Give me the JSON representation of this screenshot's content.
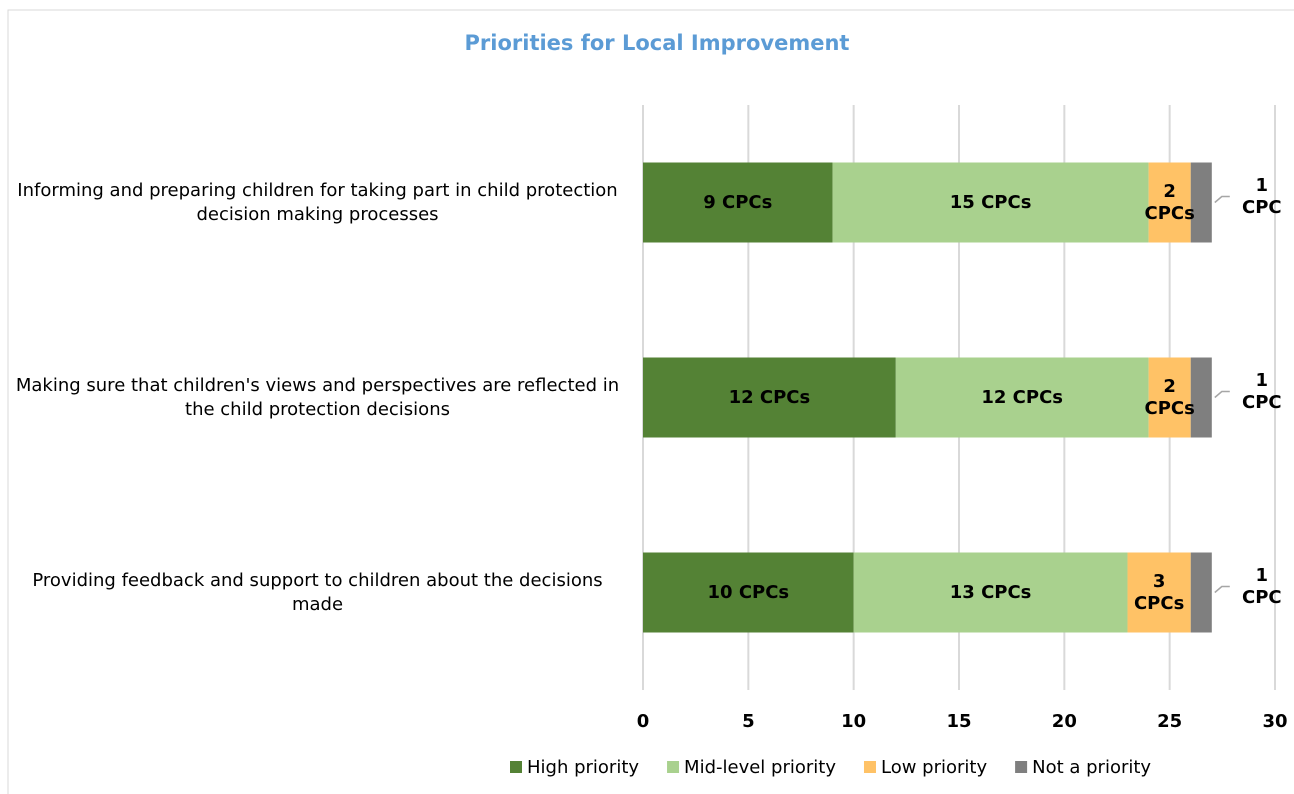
{
  "chart_data": {
    "type": "stacked_bar_horizontal",
    "title": "Priorities for Local Improvement",
    "categories": [
      "Informing and preparing children for taking part in child protection decision making processes",
      "Making sure that children's views and perspectives are reflected in the child protection decisions",
      "Providing feedback and support to children about the decisions made"
    ],
    "series": [
      {
        "name": "High priority",
        "color": "#548235",
        "values": [
          9,
          12,
          10
        ],
        "value_labels": [
          "9 CPCs",
          "12 CPCs",
          "10 CPCs"
        ]
      },
      {
        "name": "Mid-level priority",
        "color": "#a9d18e",
        "values": [
          15,
          12,
          13
        ],
        "value_labels": [
          "15 CPCs",
          "12 CPCs",
          "13 CPCs"
        ]
      },
      {
        "name": "Low priority",
        "color": "#ffc266",
        "values": [
          2,
          2,
          3
        ],
        "value_labels": [
          "2 CPCs",
          "2 CPCs",
          "3 CPCs"
        ]
      },
      {
        "name": "Not a priority",
        "color": "#7f7f7f",
        "values": [
          1,
          1,
          1
        ],
        "value_labels": [
          "1 CPC",
          "1 CPC",
          "1 CPC"
        ]
      }
    ],
    "xlim": [
      0,
      30
    ],
    "xticks": [
      0,
      5,
      10,
      15,
      20,
      25,
      30
    ],
    "grid": true,
    "legend": "bottom"
  }
}
